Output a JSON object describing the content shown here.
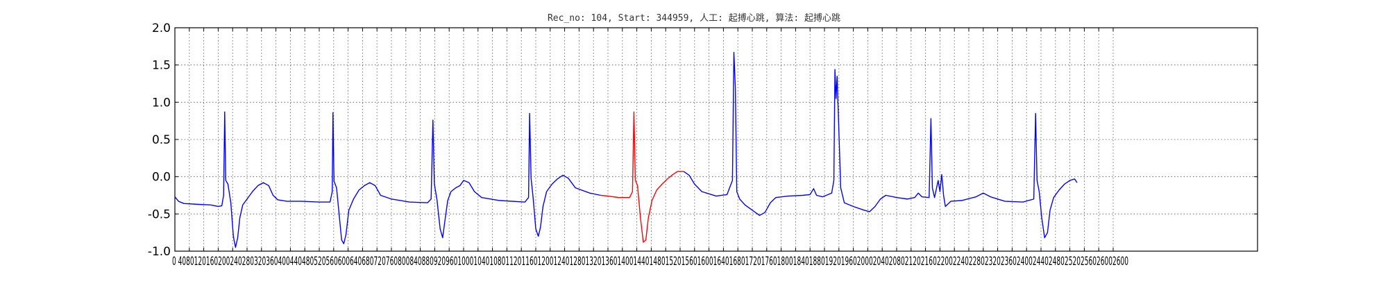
{
  "chart_data": {
    "type": "line",
    "title": "Rec_no: 104, Start: 344959, 人工: 起搏心跳, 算法: 起搏心跳",
    "xlabel": "",
    "ylabel": "",
    "xlim": [
      0,
      3000
    ],
    "ylim": [
      -1.0,
      2.0
    ],
    "grid": true,
    "grid_style": "dotted",
    "x_ticks": [
      0,
      40,
      80,
      120,
      160,
      200,
      240,
      280,
      320,
      360,
      400,
      440,
      480,
      520,
      560,
      600,
      640,
      680,
      720,
      760,
      800,
      840,
      880,
      920,
      960,
      1000,
      1040,
      1080,
      1120,
      1160,
      1200,
      1240,
      1280,
      1320,
      1360,
      1400,
      1440,
      1480,
      1520,
      1560,
      1600,
      1640,
      1680,
      1720,
      1760,
      1800,
      1840,
      1880,
      1920,
      1960,
      2000,
      2040,
      2080,
      2120,
      2160,
      2200,
      2240,
      2280,
      2320,
      2360,
      2400,
      2440,
      2480,
      2520,
      2560,
      2600
    ],
    "x_tick_labels": "0 4080120160200240280320360400440480520560600640680720760800840880920960100010401080112011601200124012801320136014001440148015201560160016401680172017601800184018801920196020002040208021202160220022402280232023602400244024802520256026002600",
    "y_ticks": [
      -1.0,
      -0.5,
      0.0,
      0.5,
      1.0,
      1.5,
      2.0
    ],
    "y_tick_labels": [
      "-1.0",
      "-0.5",
      "0.0",
      "0.5",
      "1.0",
      "1.5",
      "2.0"
    ],
    "colors": {
      "signal": "#0000ff",
      "highlight": "#ff0000",
      "grid": "#555555"
    },
    "highlight_range": [
      1200,
      1420
    ],
    "series": [
      {
        "color": "#0000ff",
        "points": [
          [
            0,
            -0.27
          ],
          [
            10,
            -0.33
          ],
          [
            25,
            -0.36
          ],
          [
            60,
            -0.37
          ],
          [
            100,
            -0.38
          ],
          [
            120,
            -0.4
          ],
          [
            130,
            -0.39
          ],
          [
            135,
            -0.25
          ],
          [
            138,
            0.87
          ],
          [
            141,
            -0.05
          ],
          [
            147,
            -0.1
          ],
          [
            155,
            -0.35
          ],
          [
            162,
            -0.8
          ],
          [
            168,
            -0.95
          ],
          [
            174,
            -0.82
          ],
          [
            180,
            -0.55
          ],
          [
            188,
            -0.38
          ],
          [
            200,
            -0.3
          ],
          [
            215,
            -0.2
          ],
          [
            230,
            -0.12
          ],
          [
            245,
            -0.08
          ],
          [
            260,
            -0.12
          ],
          [
            272,
            -0.25
          ],
          [
            285,
            -0.31
          ],
          [
            310,
            -0.33
          ],
          [
            350,
            -0.33
          ],
          [
            400,
            -0.34
          ],
          [
            430,
            -0.34
          ],
          [
            436,
            -0.2
          ],
          [
            438,
            0.86
          ],
          [
            441,
            -0.06
          ],
          [
            448,
            -0.15
          ],
          [
            455,
            -0.5
          ],
          [
            462,
            -0.85
          ],
          [
            468,
            -0.9
          ],
          [
            474,
            -0.78
          ],
          [
            482,
            -0.45
          ],
          [
            495,
            -0.3
          ],
          [
            510,
            -0.18
          ],
          [
            525,
            -0.12
          ],
          [
            540,
            -0.08
          ],
          [
            555,
            -0.12
          ],
          [
            570,
            -0.25
          ],
          [
            600,
            -0.3
          ],
          [
            650,
            -0.34
          ],
          [
            700,
            -0.35
          ],
          [
            710,
            -0.3
          ],
          [
            715,
            0.76
          ],
          [
            719,
            -0.1
          ],
          [
            726,
            -0.3
          ],
          [
            735,
            -0.7
          ],
          [
            742,
            -0.82
          ],
          [
            748,
            -0.6
          ],
          [
            756,
            -0.32
          ],
          [
            765,
            -0.2
          ],
          [
            778,
            -0.15
          ],
          [
            790,
            -0.12
          ],
          [
            800,
            -0.05
          ],
          [
            815,
            -0.08
          ],
          [
            830,
            -0.2
          ],
          [
            850,
            -0.28
          ],
          [
            900,
            -0.32
          ],
          [
            970,
            -0.34
          ],
          [
            980,
            -0.28
          ],
          [
            983,
            0.85
          ],
          [
            987,
            -0.02
          ],
          [
            993,
            -0.3
          ],
          [
            1000,
            -0.7
          ],
          [
            1007,
            -0.8
          ],
          [
            1013,
            -0.68
          ],
          [
            1020,
            -0.4
          ],
          [
            1030,
            -0.2
          ],
          [
            1045,
            -0.1
          ],
          [
            1060,
            -0.03
          ],
          [
            1075,
            0.02
          ],
          [
            1090,
            -0.02
          ],
          [
            1110,
            -0.15
          ],
          [
            1150,
            -0.22
          ],
          [
            1180,
            -0.25
          ]
        ]
      },
      {
        "color": "#ff0000",
        "points": [
          [
            1180,
            -0.25
          ],
          [
            1200,
            -0.26
          ],
          [
            1230,
            -0.28
          ],
          [
            1260,
            -0.28
          ],
          [
            1268,
            -0.2
          ],
          [
            1272,
            0.87
          ],
          [
            1276,
            -0.05
          ],
          [
            1282,
            -0.12
          ],
          [
            1290,
            -0.55
          ],
          [
            1298,
            -0.88
          ],
          [
            1305,
            -0.85
          ],
          [
            1312,
            -0.55
          ],
          [
            1322,
            -0.32
          ],
          [
            1335,
            -0.18
          ],
          [
            1350,
            -0.1
          ],
          [
            1365,
            -0.03
          ],
          [
            1380,
            0.03
          ],
          [
            1393,
            0.07
          ],
          [
            1410,
            0.07
          ]
        ]
      },
      {
        "color": "#0000ff",
        "points": [
          [
            1410,
            0.07
          ],
          [
            1425,
            0.02
          ],
          [
            1440,
            -0.1
          ],
          [
            1460,
            -0.2
          ],
          [
            1500,
            -0.26
          ],
          [
            1530,
            -0.24
          ],
          [
            1545,
            -0.05
          ],
          [
            1549,
            1.67
          ],
          [
            1553,
            1.2
          ],
          [
            1557,
            -0.2
          ],
          [
            1565,
            -0.3
          ],
          [
            1580,
            -0.38
          ],
          [
            1600,
            -0.45
          ],
          [
            1620,
            -0.52
          ],
          [
            1635,
            -0.48
          ],
          [
            1650,
            -0.35
          ],
          [
            1665,
            -0.28
          ],
          [
            1700,
            -0.26
          ],
          [
            1740,
            -0.25
          ],
          [
            1760,
            -0.24
          ],
          [
            1770,
            -0.16
          ],
          [
            1778,
            -0.25
          ],
          [
            1795,
            -0.27
          ],
          [
            1820,
            -0.22
          ],
          [
            1826,
            -0.05
          ],
          [
            1829,
            1.44
          ],
          [
            1832,
            1.05
          ],
          [
            1835,
            1.35
          ],
          [
            1840,
            0.6
          ],
          [
            1845,
            -0.15
          ],
          [
            1855,
            -0.35
          ],
          [
            1880,
            -0.4
          ],
          [
            1910,
            -0.45
          ],
          [
            1925,
            -0.47
          ],
          [
            1940,
            -0.4
          ],
          [
            1955,
            -0.3
          ],
          [
            1970,
            -0.25
          ],
          [
            2000,
            -0.28
          ],
          [
            2030,
            -0.3
          ],
          [
            2050,
            -0.28
          ],
          [
            2060,
            -0.22
          ],
          [
            2070,
            -0.27
          ],
          [
            2090,
            -0.28
          ],
          [
            2095,
            0.78
          ],
          [
            2099,
            -0.15
          ],
          [
            2105,
            -0.28
          ],
          [
            2115,
            -0.05
          ],
          [
            2120,
            -0.2
          ],
          [
            2125,
            0.03
          ],
          [
            2130,
            -0.25
          ],
          [
            2135,
            -0.4
          ],
          [
            2150,
            -0.33
          ],
          [
            2180,
            -0.32
          ],
          [
            2220,
            -0.27
          ],
          [
            2240,
            -0.22
          ],
          [
            2260,
            -0.27
          ],
          [
            2300,
            -0.33
          ],
          [
            2350,
            -0.34
          ],
          [
            2380,
            -0.3
          ],
          [
            2385,
            0.85
          ],
          [
            2389,
            -0.05
          ],
          [
            2395,
            -0.2
          ],
          [
            2402,
            -0.55
          ],
          [
            2410,
            -0.82
          ],
          [
            2418,
            -0.75
          ],
          [
            2425,
            -0.45
          ],
          [
            2435,
            -0.28
          ],
          [
            2450,
            -0.18
          ],
          [
            2465,
            -0.1
          ],
          [
            2480,
            -0.05
          ],
          [
            2493,
            -0.03
          ],
          [
            2500,
            -0.08
          ]
        ]
      }
    ]
  }
}
